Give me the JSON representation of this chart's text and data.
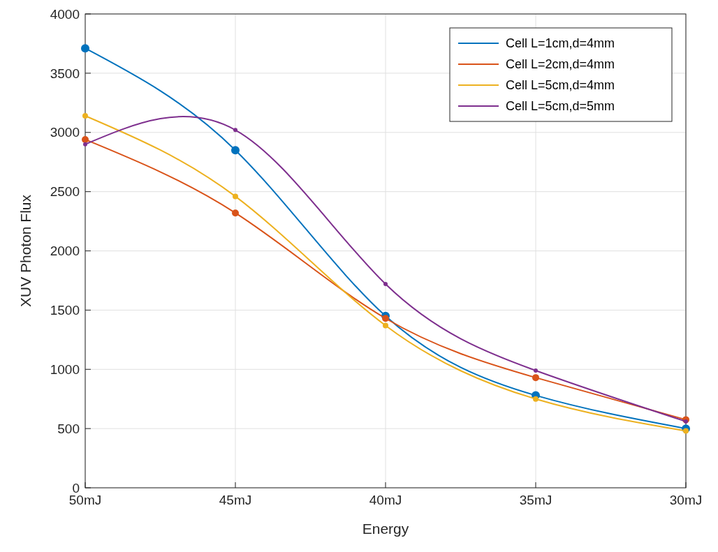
{
  "chart_data": {
    "type": "line",
    "xlabel": "Energy",
    "ylabel": "XUV Photon Flux",
    "categories": [
      "50mJ",
      "45mJ",
      "40mJ",
      "35mJ",
      "30mJ"
    ],
    "series": [
      {
        "name": "Cell L=1cm,d=4mm",
        "color": "#0072bd",
        "values": [
          3710,
          2850,
          1450,
          780,
          500
        ]
      },
      {
        "name": "Cell L=2cm,d=4mm",
        "color": "#d95319",
        "values": [
          2940,
          2320,
          1430,
          930,
          575
        ]
      },
      {
        "name": "Cell L=5cm,d=4mm",
        "color": "#edb120",
        "values": [
          3140,
          2460,
          1370,
          750,
          480
        ]
      },
      {
        "name": "Cell L=5cm,d=5mm",
        "color": "#7e2f8e",
        "values": [
          2900,
          3020,
          1720,
          990,
          560
        ]
      }
    ],
    "ylim": [
      0,
      4000
    ],
    "yticks": [
      0,
      500,
      1000,
      1500,
      2000,
      2500,
      3000,
      3500,
      4000
    ],
    "grid": true,
    "legend": "top right",
    "marker": "circle",
    "line_style": "solid"
  }
}
